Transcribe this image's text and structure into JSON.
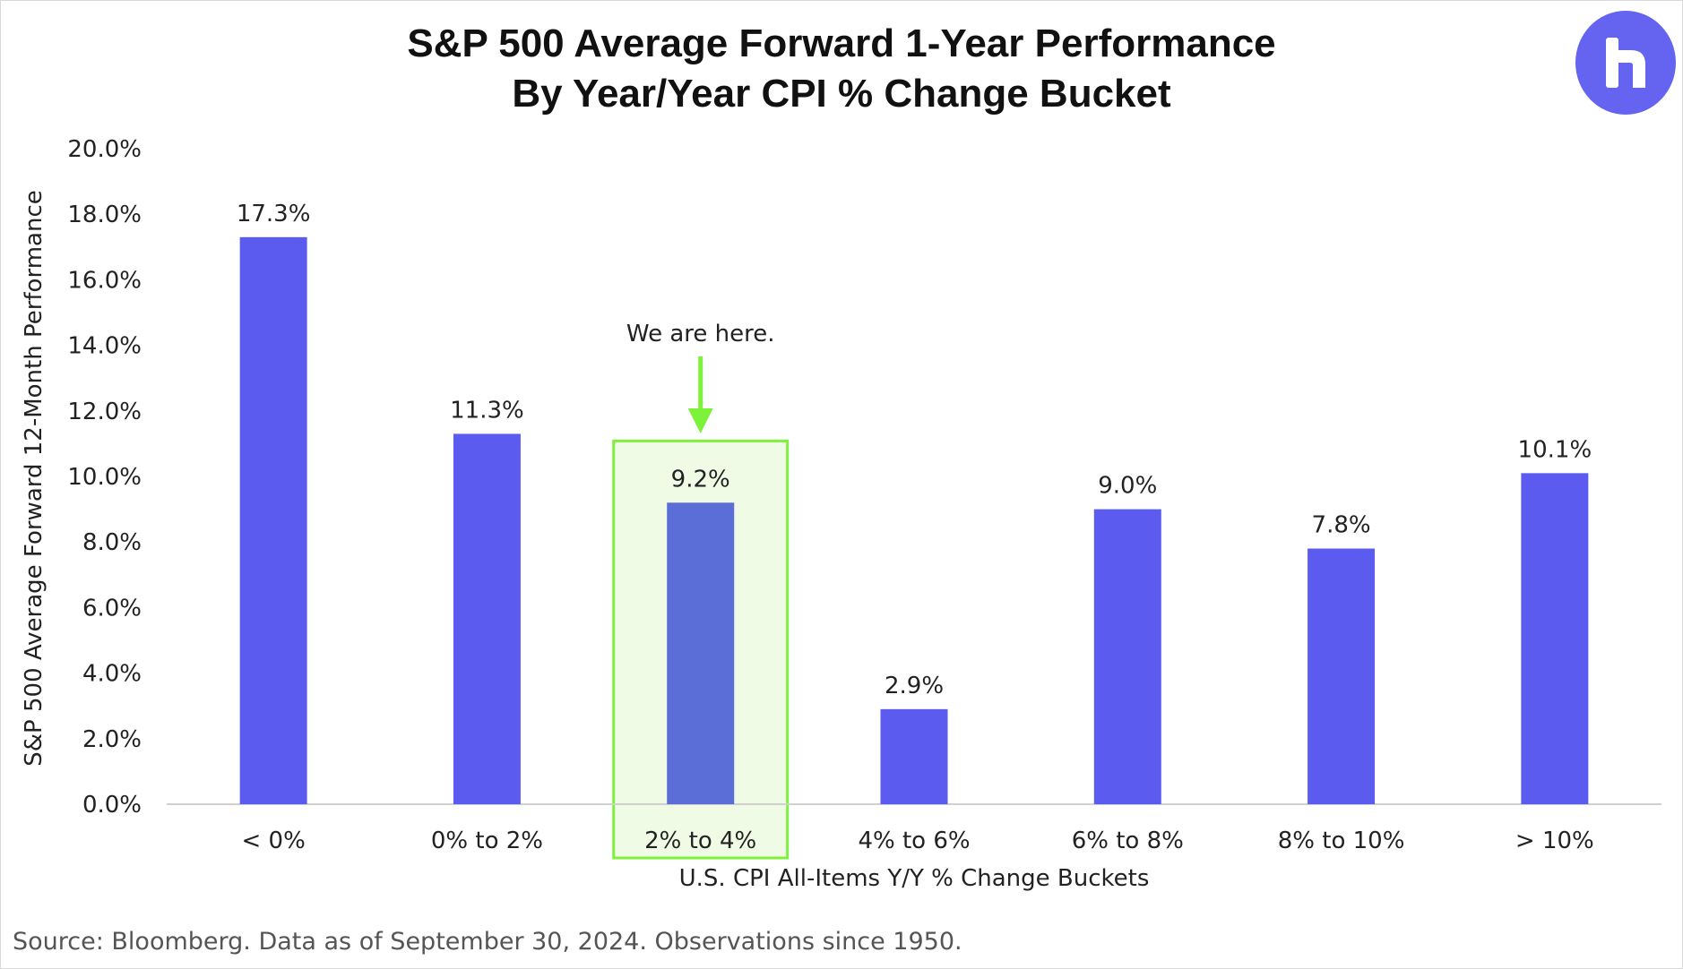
{
  "header": {
    "title_line1": "S&P 500 Average Forward 1-Year Performance",
    "title_line2": "By Year/Year CPI % Change Bucket"
  },
  "logo": {
    "icon": "brand-logo-icon",
    "color": "#6464f0"
  },
  "footer": {
    "source": "Source: Bloomberg. Data as of September 30, 2024. Observations since 1950."
  },
  "chart_data": {
    "type": "bar",
    "title": "S&P 500 Average Forward 1-Year Performance By Year/Year CPI % Change Bucket",
    "xlabel": "U.S. CPI All-Items Y/Y % Change Buckets",
    "ylabel": "S&P 500 Average Forward 12-Month Performance",
    "categories": [
      "< 0%",
      "0% to 2%",
      "2% to 4%",
      "4% to 6%",
      "6% to 8%",
      "8% to 10%",
      "> 10%"
    ],
    "values": [
      17.3,
      11.3,
      9.2,
      2.9,
      9.0,
      7.8,
      10.1
    ],
    "data_labels": [
      "17.3%",
      "11.3%",
      "9.2%",
      "2.9%",
      "9.0%",
      "7.8%",
      "10.1%"
    ],
    "ylim": [
      0,
      20
    ],
    "yticks": [
      0,
      2,
      4,
      6,
      8,
      10,
      12,
      14,
      16,
      18,
      20
    ],
    "ytick_labels": [
      "0.0%",
      "2.0%",
      "4.0%",
      "6.0%",
      "8.0%",
      "10.0%",
      "12.0%",
      "14.0%",
      "16.0%",
      "18.0%",
      "20.0%"
    ],
    "grid": false,
    "legend": "none",
    "bar_color": "#5b5bef",
    "highlight": {
      "category": "2% to 4%",
      "text": "We are here.",
      "bar_color": "#5b6ed8",
      "box_fill": "#f0fbe6",
      "box_stroke": "#7cf23a"
    }
  }
}
